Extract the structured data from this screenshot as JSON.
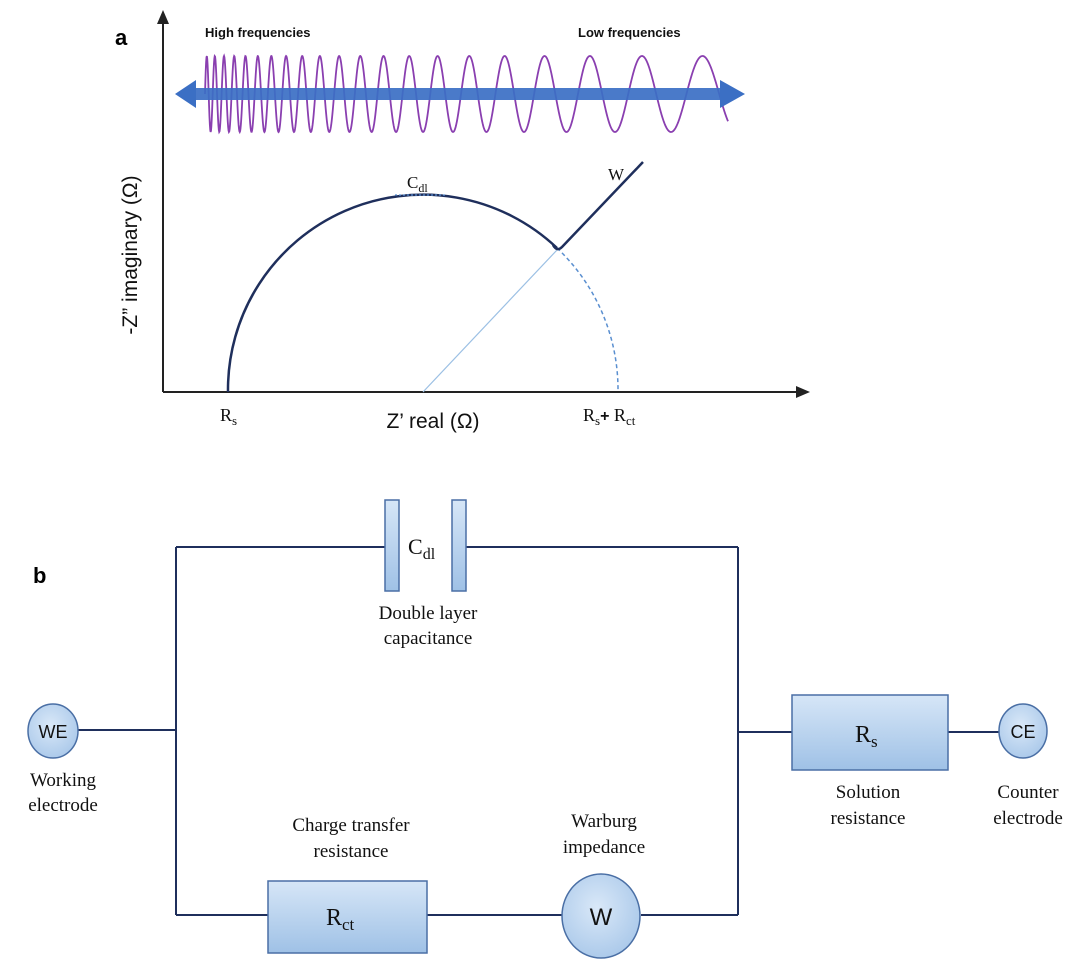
{
  "panel_a": {
    "label": "a",
    "high_freq_label": "High frequencies",
    "low_freq_label": "Low frequencies",
    "y_axis_label": "-Z” imaginary (Ω)",
    "x_axis_label": "Z’ real (Ω)",
    "rs_label": {
      "main": "R",
      "sub": "s"
    },
    "rsrct_label": {
      "main1": "R",
      "sub1": "s",
      "plus": "+",
      "main2": "R",
      "sub2": "ct"
    },
    "cdl_label": {
      "main": "C",
      "sub": "dl"
    },
    "w_label": "W",
    "colors": {
      "curve": "#1f2f5c",
      "wave": "#8a3fb0",
      "arrow": "#3b6fc4",
      "guide": "#5a8fd0"
    }
  },
  "panel_b": {
    "label": "b",
    "cdl_box": {
      "main": "C",
      "sub": "dl"
    },
    "cdl_caption": [
      "Double layer",
      "capacitance"
    ],
    "we_circle": "WE",
    "we_caption": [
      "Working",
      "electrode"
    ],
    "rs_box": {
      "main": "R",
      "sub": "s"
    },
    "rs_caption": [
      "Solution",
      "resistance"
    ],
    "ce_circle": "CE",
    "ce_caption": [
      "Counter",
      "electrode"
    ],
    "rct_box": {
      "main": "R",
      "sub": "ct"
    },
    "rct_caption": [
      "Charge transfer",
      "resistance"
    ],
    "w_circle": "W",
    "w_caption": [
      "Warburg",
      "impedance"
    ],
    "colors": {
      "wire": "#1f2f5c",
      "fill": "#b9d3ee",
      "stroke": "#4a6fa5"
    }
  }
}
